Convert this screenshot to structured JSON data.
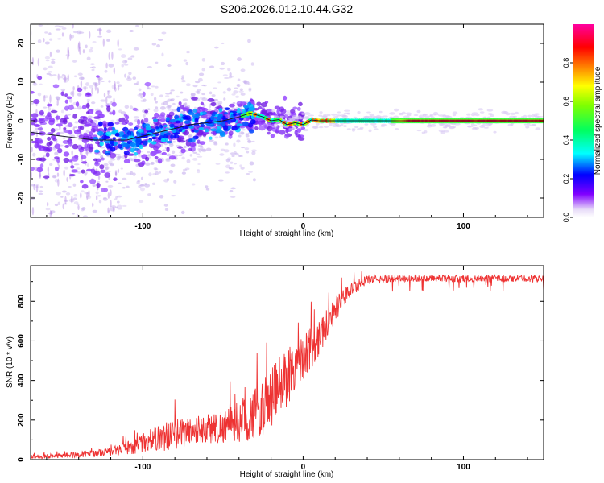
{
  "figure": {
    "title": "S206.2026.012.10.44.G32"
  },
  "chart_data": [
    {
      "type": "heatmap",
      "name": "spectrogram",
      "title": "S206.2026.012.10.44.G32",
      "xlabel": "Height of straight line (km)",
      "ylabel": "Frequency (Hz)",
      "xlim": [
        -170,
        150
      ],
      "ylim": [
        -25,
        25
      ],
      "xticks": [
        -100,
        0,
        100
      ],
      "yticks": [
        -20,
        -10,
        0,
        10,
        20
      ],
      "grid": false,
      "description_series": [
        {
          "name": "dominant frequency",
          "x": [
            -170,
            -150,
            -130,
            -110,
            -90,
            -70,
            -50,
            -40,
            -33,
            -25,
            -20,
            -15,
            -10,
            -5,
            0,
            5,
            10,
            20,
            40,
            60,
            100,
            150
          ],
          "y": [
            -3,
            -4,
            -5,
            -5,
            -3,
            -1,
            0,
            1,
            2,
            1,
            0,
            0.3,
            -1,
            -0.5,
            -1,
            0.2,
            0,
            0,
            0,
            0,
            0,
            0
          ]
        }
      ],
      "colorbar": {
        "label": "Normalized spectral amplitude",
        "range": [
          0,
          1
        ],
        "ticks": [
          0.0,
          0.2,
          0.4,
          0.6,
          0.8
        ],
        "colormap": [
          "#ffffff",
          "#d8c8f0",
          "#8000ff",
          "#0000ff",
          "#00ffff",
          "#00ff00",
          "#ffff00",
          "#ff8000",
          "#ff0000",
          "#ff00a0"
        ]
      }
    },
    {
      "type": "line",
      "name": "snr",
      "xlabel": "Height of straight line (km)",
      "ylabel": "SNR (10 * v/v)",
      "xlim": [
        -170,
        150
      ],
      "ylim": [
        0,
        980
      ],
      "xticks": [
        -100,
        0,
        100
      ],
      "yticks": [
        0,
        200,
        400,
        600,
        800
      ],
      "grid": false,
      "line_color": "#ee3333",
      "envelope": {
        "x": [
          -170,
          -140,
          -120,
          -105,
          -95,
          -85,
          -75,
          -65,
          -55,
          -45,
          -35,
          -25,
          -15,
          -8,
          -3,
          5,
          12,
          20,
          30,
          40,
          60,
          100,
          150
        ],
        "mean": [
          15,
          25,
          40,
          70,
          100,
          120,
          140,
          150,
          160,
          180,
          210,
          260,
          360,
          450,
          500,
          560,
          650,
          760,
          860,
          910,
          915,
          915,
          915
        ],
        "spread": [
          15,
          20,
          30,
          60,
          80,
          110,
          110,
          110,
          120,
          130,
          170,
          200,
          240,
          220,
          170,
          160,
          130,
          90,
          50,
          30,
          25,
          25,
          25
        ]
      }
    }
  ]
}
